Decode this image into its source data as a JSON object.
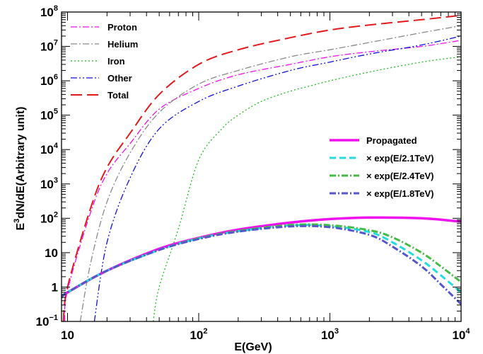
{
  "chart_data": {
    "type": "line",
    "xlabel": "E(GeV)",
    "ylabel_parts": [
      "E",
      "3",
      "dN/dE(Arbitrary unit)"
    ],
    "x_scale": "log",
    "y_scale": "log",
    "xlim": [
      9,
      10000
    ],
    "ylim": [
      0.1,
      100000000
    ],
    "x_ticks": [
      {
        "value": 10,
        "base": "10",
        "exp": ""
      },
      {
        "value": 100,
        "base": "10",
        "exp": "2"
      },
      {
        "value": 1000,
        "base": "10",
        "exp": "3"
      },
      {
        "value": 10000,
        "base": "10",
        "exp": "4"
      }
    ],
    "y_ticks": [
      {
        "value": 0.1,
        "base": "10",
        "exp": "−1"
      },
      {
        "value": 1,
        "base": "1",
        "exp": ""
      },
      {
        "value": 10,
        "base": "10",
        "exp": ""
      },
      {
        "value": 100,
        "base": "10",
        "exp": "2"
      },
      {
        "value": 1000,
        "base": "10",
        "exp": "3"
      },
      {
        "value": 10000,
        "base": "10",
        "exp": "4"
      },
      {
        "value": 100000,
        "base": "10",
        "exp": "5"
      },
      {
        "value": 1000000,
        "base": "10",
        "exp": "6"
      },
      {
        "value": 10000000,
        "base": "10",
        "exp": "7"
      },
      {
        "value": 100000000,
        "base": "10",
        "exp": "8"
      }
    ],
    "legend_top_left": [
      "Proton",
      "Helium",
      "Iron",
      "Other",
      "Total"
    ],
    "legend_right": [
      "Propagated",
      "× exp(E/2.1TeV)",
      "× exp(E/2.4TeV)",
      "× exp(E/1.8TeV)"
    ],
    "series": [
      {
        "name": "Total",
        "color": "#e31a1c",
        "dash": "long-dash",
        "width": 2,
        "x": [
          9.3,
          10,
          15,
          20,
          30,
          50,
          100,
          200,
          500,
          1000,
          2000,
          5000,
          10000
        ],
        "y": [
          0.1,
          1,
          200,
          3000,
          30000,
          400000,
          3000000,
          8000000,
          18000000,
          30000000,
          42000000,
          60000000,
          80000000
        ]
      },
      {
        "name": "Proton",
        "color": "#ee11ee",
        "dash": "dash-dot",
        "width": 1.3,
        "x": [
          9.5,
          10,
          15,
          20,
          30,
          50,
          100,
          200,
          500,
          1000,
          2000,
          5000,
          10000
        ],
        "y": [
          0.1,
          0.8,
          150,
          2000,
          15000,
          150000,
          600000,
          1500000,
          3000000,
          5000000,
          7000000,
          10000000,
          15000000
        ]
      },
      {
        "name": "Helium",
        "color": "#8a8a8a",
        "dash": "dash-dot",
        "width": 1.3,
        "x": [
          12.5,
          15,
          20,
          30,
          50,
          100,
          200,
          500,
          1000,
          2000,
          5000,
          10000
        ],
        "y": [
          0.1,
          5,
          300,
          8000,
          120000,
          800000,
          2000000,
          5000000,
          8000000,
          13000000,
          25000000,
          40000000
        ]
      },
      {
        "name": "Other",
        "color": "#1010dd",
        "dash": "dash-dot-dot",
        "width": 1.3,
        "x": [
          16,
          20,
          30,
          50,
          100,
          200,
          500,
          1000,
          2000,
          5000,
          10000
        ],
        "y": [
          0.1,
          20,
          1500,
          40000,
          250000,
          700000,
          2000000,
          3500000,
          6000000,
          11000000,
          20000000
        ]
      },
      {
        "name": "Iron",
        "color": "#22bb22",
        "dash": "dotted",
        "width": 1.3,
        "x": [
          45,
          50,
          70,
          100,
          150,
          200,
          300,
          500,
          700,
          1000,
          2000,
          5000,
          10000
        ],
        "y": [
          0.1,
          1,
          50,
          5000,
          40000,
          100000,
          250000,
          500000,
          700000,
          1000000,
          1800000,
          3500000,
          5000000
        ]
      },
      {
        "name": "Propagated",
        "color": "#ee11ee",
        "dash": "solid",
        "width": 3.5,
        "x": [
          9,
          10,
          20,
          50,
          100,
          200,
          500,
          1000,
          2000,
          5000,
          10000
        ],
        "y": [
          0.5,
          0.7,
          3,
          13,
          27,
          47,
          75,
          95,
          105,
          100,
          80
        ]
      },
      {
        "name": "× exp(E/2.1TeV)",
        "color": "#22dddd",
        "dash": "dashed",
        "width": 3,
        "x": [
          9,
          10,
          20,
          50,
          100,
          200,
          500,
          1000,
          2000,
          3000,
          5000,
          7000,
          10000
        ],
        "y": [
          0.5,
          0.7,
          3,
          12,
          26,
          42,
          62,
          59,
          40,
          20,
          6,
          2.2,
          0.7
        ]
      },
      {
        "name": "× exp(E/2.4TeV)",
        "color": "#44bb44",
        "dash": "dash-dot",
        "width": 3,
        "x": [
          9,
          10,
          20,
          50,
          100,
          200,
          500,
          1000,
          2000,
          3000,
          5000,
          7000,
          10000
        ],
        "y": [
          0.5,
          0.7,
          3,
          12,
          26,
          43,
          64,
          63,
          45,
          28,
          10,
          4,
          1.4
        ]
      },
      {
        "name": "× exp(E/1.8TeV)",
        "color": "#5555cc",
        "dash": "dash-dot",
        "width": 3,
        "x": [
          9,
          10,
          20,
          50,
          100,
          200,
          500,
          1000,
          2000,
          3000,
          5000,
          7000,
          10000
        ],
        "y": [
          0.5,
          0.7,
          3,
          12,
          25,
          41,
          58,
          55,
          33,
          15,
          4,
          1.2,
          0.32
        ]
      }
    ]
  }
}
